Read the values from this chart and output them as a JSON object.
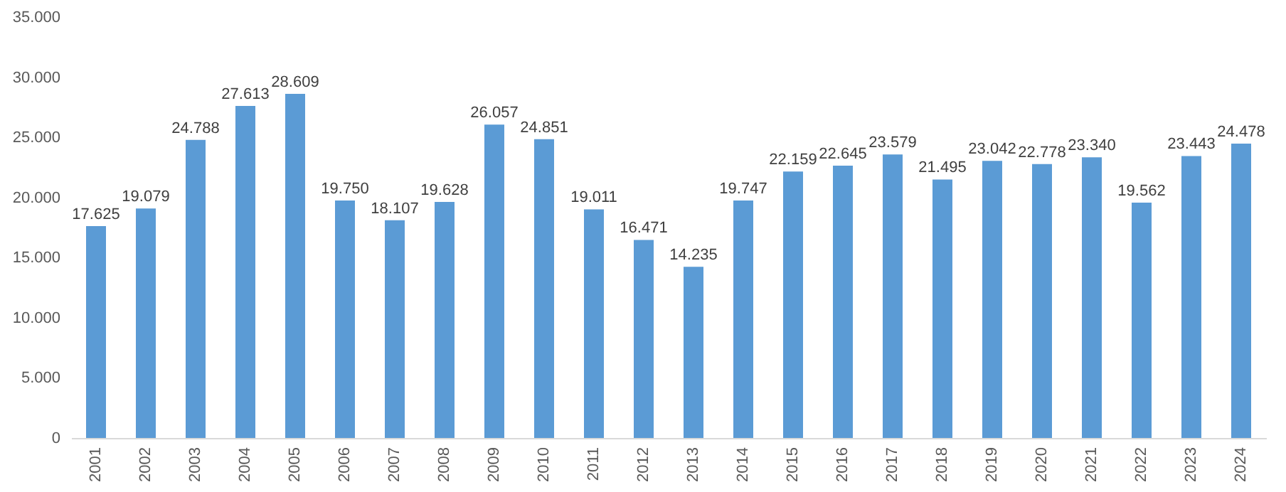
{
  "chart_data": {
    "type": "bar",
    "categories": [
      "2001",
      "2002",
      "2003",
      "2004",
      "2005",
      "2006",
      "2007",
      "2008",
      "2009",
      "2010",
      "2011",
      "2012",
      "2013",
      "2014",
      "2015",
      "2016",
      "2017",
      "2018",
      "2019",
      "2020",
      "2021",
      "2022",
      "2023",
      "2024"
    ],
    "values": [
      17625,
      19079,
      24788,
      27613,
      28609,
      19750,
      18107,
      19628,
      26057,
      24851,
      19011,
      16471,
      14235,
      19747,
      22159,
      22645,
      23579,
      21495,
      23042,
      22778,
      23340,
      19562,
      23443,
      24478
    ],
    "value_labels": [
      "17.625",
      "19.079",
      "24.788",
      "27.613",
      "28.609",
      "19.750",
      "18.107",
      "19.628",
      "26.057",
      "24.851",
      "19.011",
      "16.471",
      "14.235",
      "19.747",
      "22.159",
      "22.645",
      "23.579",
      "21.495",
      "23.042",
      "22.778",
      "23.340",
      "19.562",
      "23.443",
      "24.478"
    ],
    "color": "#5b9bd5",
    "ylim": [
      0,
      35000
    ],
    "yticks": [
      0,
      {
        "value": 5000,
        "label": "5.000"
      },
      {
        "value": 10000,
        "label": "10.000"
      },
      {
        "value": 15000,
        "label": "15.000"
      },
      {
        "value": 20000,
        "label": "20.000"
      },
      {
        "value": 25000,
        "label": "25.000"
      },
      {
        "value": 30000,
        "label": "30.000"
      },
      {
        "value": 35000,
        "label": "35.000"
      }
    ],
    "grid": false
  }
}
